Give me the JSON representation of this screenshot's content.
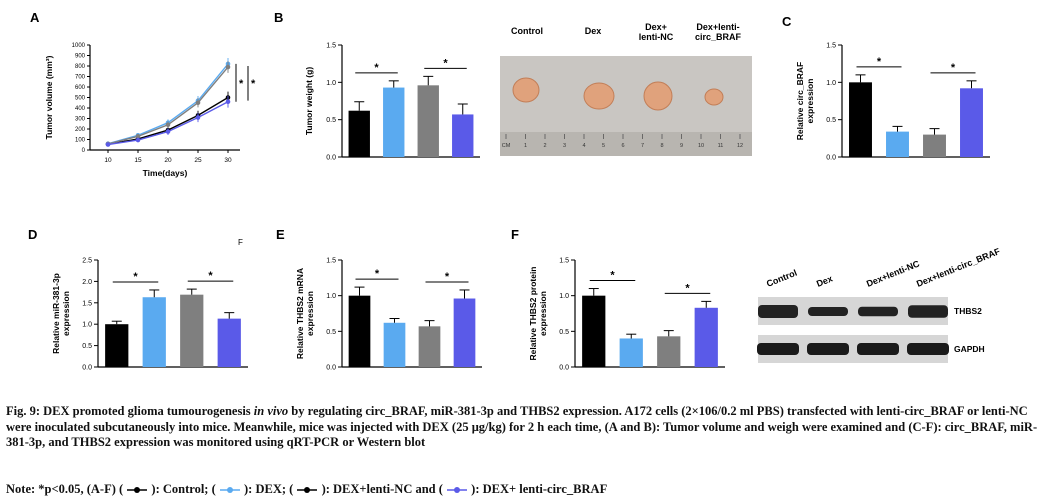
{
  "colors": {
    "control": "#000000",
    "dex": "#5aaaf0",
    "dex_nc": "#7f7f7f",
    "dex_circ": "#5a5ae8"
  },
  "panel_labels": [
    "A",
    "B",
    "C",
    "D",
    "E",
    "F"
  ],
  "stray_mark": "F",
  "photo": {
    "labels": [
      "Control",
      "Dex",
      "Dex+\nlenti-NC",
      "Dex+lenti-\ncirc_BRAF"
    ],
    "ruler_numbers": [
      "CM",
      "1",
      "2",
      "3",
      "4",
      "5",
      "6",
      "7",
      "8",
      "9",
      "10",
      "11",
      "12"
    ]
  },
  "western": {
    "lanes": [
      "Control",
      "Dex",
      "Dex+lenti-NC",
      "Dex+lenti-circ_BRAF"
    ],
    "bands": [
      "THBS2",
      "GAPDH"
    ]
  },
  "chart_data": [
    {
      "id": "A",
      "type": "line",
      "xlabel": "Time(days)",
      "ylabel": "Tumor volume (mm³)",
      "x": [
        10,
        15,
        20,
        25,
        30
      ],
      "xlim": [
        7,
        32
      ],
      "ylim": [
        0,
        1000
      ],
      "yticks": [
        0,
        100,
        200,
        300,
        400,
        500,
        600,
        700,
        800,
        900,
        1000
      ],
      "series": [
        {
          "color": "#000000",
          "values": [
            55,
            105,
            190,
            330,
            500
          ]
        },
        {
          "color": "#5aaaf0",
          "values": [
            60,
            140,
            260,
            470,
            820
          ]
        },
        {
          "color": "#7f7f7f",
          "values": [
            58,
            130,
            240,
            450,
            790
          ]
        },
        {
          "color": "#5a5ae8",
          "values": [
            52,
            95,
            175,
            310,
            460
          ]
        }
      ],
      "significance": [
        "*",
        "*"
      ]
    },
    {
      "id": "B",
      "type": "bar",
      "ylabel": "Tumor weight (g)",
      "ylim": [
        0,
        1.5
      ],
      "yticks": [
        "0.0",
        "0.5",
        "1.0",
        "1.5"
      ],
      "values": [
        0.62,
        0.93,
        0.96,
        0.57
      ],
      "errors": [
        0.12,
        0.09,
        0.12,
        0.14
      ],
      "colors": [
        "#000000",
        "#5aaaf0",
        "#7f7f7f",
        "#5a5ae8"
      ],
      "significance": [
        {
          "from": 0,
          "to": 1,
          "label": "*"
        },
        {
          "from": 2,
          "to": 3,
          "label": "*"
        }
      ]
    },
    {
      "id": "C",
      "type": "bar",
      "ylabel": "Relative circ_BRAF\nexpression",
      "ylim": [
        0,
        1.5
      ],
      "yticks": [
        "0.0",
        "0.5",
        "1.0",
        "1.5"
      ],
      "values": [
        1.0,
        0.34,
        0.3,
        0.92
      ],
      "errors": [
        0.1,
        0.07,
        0.08,
        0.1
      ],
      "colors": [
        "#000000",
        "#5aaaf0",
        "#7f7f7f",
        "#5a5ae8"
      ],
      "significance": [
        {
          "from": 0,
          "to": 1,
          "label": "*"
        },
        {
          "from": 2,
          "to": 3,
          "label": "*"
        }
      ]
    },
    {
      "id": "D",
      "type": "bar",
      "ylabel": "Relative miR-381-3p\nexpression",
      "ylim": [
        0,
        2.5
      ],
      "yticks": [
        "0.0",
        "0.5",
        "1.0",
        "1.5",
        "2.0",
        "2.5"
      ],
      "values": [
        1.0,
        1.63,
        1.69,
        1.13
      ],
      "errors": [
        0.07,
        0.17,
        0.13,
        0.14
      ],
      "colors": [
        "#000000",
        "#5aaaf0",
        "#7f7f7f",
        "#5a5ae8"
      ],
      "significance": [
        {
          "from": 0,
          "to": 1,
          "label": "*"
        },
        {
          "from": 2,
          "to": 3,
          "label": "*"
        }
      ]
    },
    {
      "id": "E",
      "type": "bar",
      "ylabel": "Relative THBS2 mRNA\nexpression",
      "ylim": [
        0,
        1.5
      ],
      "yticks": [
        "0.0",
        "0.5",
        "1.0",
        "1.5"
      ],
      "values": [
        1.0,
        0.62,
        0.57,
        0.96
      ],
      "errors": [
        0.12,
        0.06,
        0.08,
        0.12
      ],
      "colors": [
        "#000000",
        "#5aaaf0",
        "#7f7f7f",
        "#5a5ae8"
      ],
      "significance": [
        {
          "from": 0,
          "to": 1,
          "label": "*"
        },
        {
          "from": 2,
          "to": 3,
          "label": "*"
        }
      ]
    },
    {
      "id": "F",
      "type": "bar",
      "ylabel": "Relative THBS2 protein\nexpression",
      "ylim": [
        0,
        1.5
      ],
      "yticks": [
        "0.0",
        "0.5",
        "1.0",
        "1.5"
      ],
      "values": [
        1.0,
        0.4,
        0.43,
        0.83
      ],
      "errors": [
        0.1,
        0.06,
        0.08,
        0.09
      ],
      "colors": [
        "#000000",
        "#5aaaf0",
        "#7f7f7f",
        "#5a5ae8"
      ],
      "significance": [
        {
          "from": 0,
          "to": 1,
          "label": "*"
        },
        {
          "from": 2,
          "to": 3,
          "label": "*"
        }
      ]
    }
  ],
  "caption": {
    "part1": "Fig. 9: DEX promoted glioma tumourogenesis ",
    "italic": "in vivo",
    "part2": " by regulating circ_BRAF, miR-381-3p and THBS2 expression. A172 cells (2×106/0.2 ml PBS) transfected with lenti-circ_BRAF or lenti-NC were inoculated subcutaneously into mice. Meanwhile, mice was injected with DEX (25 μg/kg) for 2 h each time, (A and B): Tumor volume and weigh were examined and (C-F): circ_BRAF, miR-381-3p, and THBS2 expression was monitored using qRT-PCR or Western blot"
  },
  "note": {
    "prefix": "Note: *p<0.05, (A-F) (",
    "control": "): Control; (",
    "dex": "): DEX; (",
    "dex_nc": "): DEX+lenti-NC and (",
    "dex_circ": "): DEX+ lenti-circ_BRAF"
  }
}
